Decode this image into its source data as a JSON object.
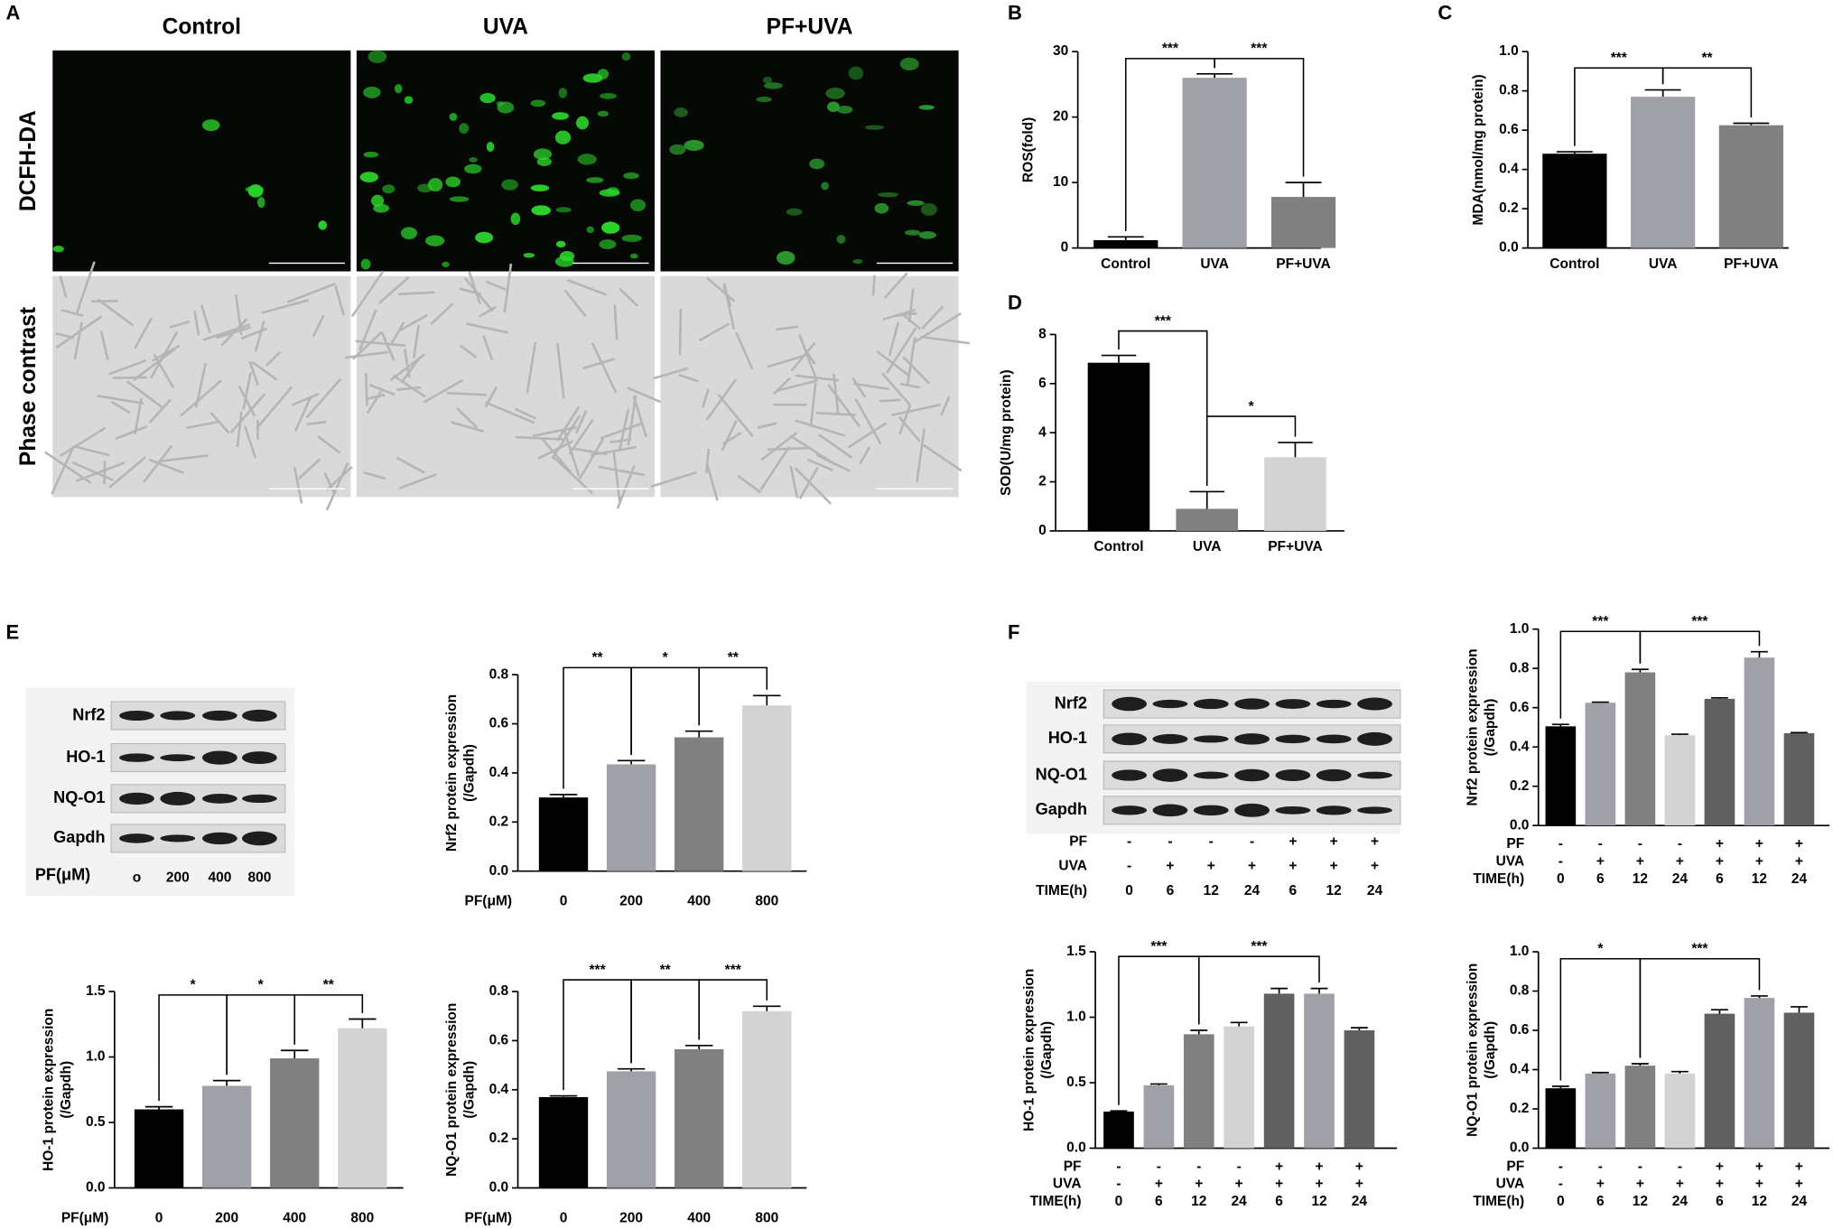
{
  "panel_labels": [
    "A",
    "B",
    "C",
    "D",
    "E",
    "F"
  ],
  "micrograph": {
    "columns": [
      "Control",
      "UVA",
      "PF+UVA"
    ],
    "rows": [
      "DCFH-DA",
      "Phase contrast"
    ]
  },
  "blot_e": {
    "rows": [
      "Nrf2",
      "HO-1",
      "NQ-O1",
      "Gapdh"
    ],
    "lane_label": "PF(μM)",
    "lanes": [
      "o",
      "200",
      "400",
      "800"
    ]
  },
  "blot_f": {
    "rows": [
      "Nrf2",
      "HO-1",
      "NQ-O1",
      "Gapdh"
    ],
    "conditions": [
      {
        "label": "PF",
        "values": [
          "-",
          "-",
          "-",
          "-",
          "+",
          "+",
          "+"
        ]
      },
      {
        "label": "UVA",
        "values": [
          "-",
          "+",
          "+",
          "+",
          "+",
          "+",
          "+"
        ]
      },
      {
        "label": "TIME(h)",
        "values": [
          "0",
          "6",
          "12",
          "24",
          "6",
          "12",
          "24"
        ]
      }
    ]
  },
  "chart_data": [
    {
      "type": "bar",
      "ylabel": [
        "ROS(fold)"
      ],
      "categories": [
        "Control",
        "UVA",
        "PF+UVA"
      ],
      "values": [
        1.2,
        26,
        7.8
      ],
      "errors": [
        0.5,
        0.6,
        2.2
      ],
      "colors": [
        "#000000",
        "#a0a0a8",
        "#808080"
      ],
      "ylim": [
        0,
        30
      ],
      "yticks": [
        0,
        10,
        20,
        30
      ],
      "annotations": [
        "***",
        "***"
      ]
    },
    {
      "type": "bar",
      "ylabel": [
        "MDA(nmol/mg protein)"
      ],
      "categories": [
        "Control",
        "UVA",
        "PF+UVA"
      ],
      "values": [
        0.48,
        0.77,
        0.625
      ],
      "errors": [
        0.01,
        0.035,
        0.01
      ],
      "colors": [
        "#000000",
        "#a0a0a8",
        "#808080"
      ],
      "ylim": [
        0,
        1
      ],
      "yticks": [
        {
          "value": 0,
          "label": "0.0"
        },
        0.2,
        0.4,
        0.6,
        0.8,
        {
          "value": 1,
          "label": "1.0"
        }
      ],
      "annotations": [
        "***",
        "**"
      ]
    },
    {
      "type": "bar",
      "ylabel": [
        "SOD(U/mg protein)"
      ],
      "categories": [
        "Control",
        "UVA",
        "PF+UVA"
      ],
      "values": [
        6.85,
        0.9,
        3.0
      ],
      "errors": [
        0.3,
        0.7,
        0.6
      ],
      "colors": [
        "#000000",
        "#808080",
        "#d3d3d3"
      ],
      "ylim": [
        0,
        8
      ],
      "yticks": [
        0,
        2,
        4,
        6,
        8
      ],
      "annotations": [
        "***",
        "*"
      ]
    },
    {
      "type": "bar",
      "ylabel": [
        "Nrf2 protein expression",
        "(/Gapdh)"
      ],
      "xlabel": "PF(μM)",
      "categories": [
        "0",
        "200",
        "400",
        "800"
      ],
      "values": [
        0.3,
        0.435,
        0.545,
        0.675
      ],
      "errors": [
        0.012,
        0.015,
        0.025,
        0.04
      ],
      "colors": [
        "#000000",
        "#a0a0a8",
        "#808080",
        "#d3d3d3"
      ],
      "ylim": [
        0,
        0.8
      ],
      "yticks": [
        {
          "value": 0,
          "label": "0.0"
        },
        0.2,
        0.4,
        0.6,
        0.8
      ],
      "annotations": [
        "**",
        "*",
        "**"
      ]
    },
    {
      "type": "bar",
      "ylabel": [
        "HO-1 protein expression",
        "(/Gapdh)"
      ],
      "xlabel": "PF(μM)",
      "categories": [
        "0",
        "200",
        "400",
        "800"
      ],
      "values": [
        0.6,
        0.78,
        0.99,
        1.22
      ],
      "errors": [
        0.02,
        0.04,
        0.06,
        0.07
      ],
      "colors": [
        "#000000",
        "#a0a0a8",
        "#808080",
        "#d3d3d3"
      ],
      "ylim": [
        0,
        1.5
      ],
      "yticks": [
        {
          "value": 0,
          "label": "0.0"
        },
        0.5,
        {
          "value": 1,
          "label": "1.0"
        },
        1.5
      ],
      "annotations": [
        "*",
        "*",
        "**"
      ]
    },
    {
      "type": "bar",
      "ylabel": [
        "NQ-O1 protein expression",
        "(/Gapdh)"
      ],
      "xlabel": "PF(μM)",
      "categories": [
        "0",
        "200",
        "400",
        "800"
      ],
      "values": [
        0.37,
        0.475,
        0.565,
        0.72
      ],
      "errors": [
        0.005,
        0.01,
        0.015,
        0.02
      ],
      "colors": [
        "#000000",
        "#a0a0a8",
        "#808080",
        "#d3d3d3"
      ],
      "ylim": [
        0,
        0.8
      ],
      "yticks": [
        {
          "value": 0,
          "label": "0.0"
        },
        0.2,
        0.4,
        0.6,
        0.8
      ],
      "annotations": [
        "***",
        "**",
        "***"
      ]
    },
    {
      "type": "bar",
      "ylabel": [
        "Nrf2 protein expression",
        "(/Gapdh)"
      ],
      "conditions": [
        {
          "label": "PF",
          "values": [
            "-",
            "-",
            "-",
            "-",
            "+",
            "+",
            "+"
          ]
        },
        {
          "label": "UVA",
          "values": [
            "-",
            "+",
            "+",
            "+",
            "+",
            "+",
            "+"
          ]
        },
        {
          "label": "TIME(h)",
          "values": [
            "0",
            "6",
            "12",
            "24",
            "6",
            "12",
            "24"
          ]
        }
      ],
      "values": [
        0.505,
        0.625,
        0.78,
        0.46,
        0.645,
        0.855,
        0.47
      ],
      "errors": [
        0.01,
        0.003,
        0.015,
        0.005,
        0.005,
        0.03,
        0.003
      ],
      "colors": [
        "#000000",
        "#a0a0a8",
        "#808080",
        "#d3d3d3",
        "#606060",
        "#a0a0a8",
        "#606060"
      ],
      "ylim": [
        0,
        1
      ],
      "yticks": [
        {
          "value": 0,
          "label": "0.0"
        },
        0.2,
        0.4,
        0.6,
        0.8,
        {
          "value": 1,
          "label": "1.0"
        }
      ],
      "annotations": [
        "***",
        "***"
      ]
    },
    {
      "type": "bar",
      "ylabel": [
        "HO-1 protein expression",
        "(/Gapdh)"
      ],
      "conditions": [
        {
          "label": "PF",
          "values": [
            "-",
            "-",
            "-",
            "-",
            "+",
            "+",
            "+"
          ]
        },
        {
          "label": "UVA",
          "values": [
            "-",
            "+",
            "+",
            "+",
            "+",
            "+",
            "+"
          ]
        },
        {
          "label": "TIME(h)",
          "values": [
            "0",
            "6",
            "12",
            "24",
            "6",
            "12",
            "24"
          ]
        }
      ],
      "values": [
        0.28,
        0.48,
        0.87,
        0.93,
        1.18,
        1.18,
        0.9
      ],
      "errors": [
        0.005,
        0.01,
        0.03,
        0.03,
        0.04,
        0.04,
        0.02
      ],
      "colors": [
        "#000000",
        "#a0a0a8",
        "#808080",
        "#d3d3d3",
        "#606060",
        "#a0a0a8",
        "#606060"
      ],
      "ylim": [
        0,
        1.5
      ],
      "yticks": [
        {
          "value": 0,
          "label": "0.0"
        },
        0.5,
        {
          "value": 1,
          "label": "1.0"
        },
        1.5
      ],
      "annotations": [
        "***",
        "***"
      ]
    },
    {
      "type": "bar",
      "ylabel": [
        "NQ-O1 protein expression",
        "(/Gapdh)"
      ],
      "conditions": [
        {
          "label": "PF",
          "values": [
            "-",
            "-",
            "-",
            "-",
            "+",
            "+",
            "+"
          ]
        },
        {
          "label": "UVA",
          "values": [
            "-",
            "+",
            "+",
            "+",
            "+",
            "+",
            "+"
          ]
        },
        {
          "label": "TIME(h)",
          "values": [
            "0",
            "6",
            "12",
            "24",
            "6",
            "12",
            "24"
          ]
        }
      ],
      "values": [
        0.305,
        0.38,
        0.42,
        0.38,
        0.685,
        0.765,
        0.69
      ],
      "errors": [
        0.01,
        0.005,
        0.01,
        0.01,
        0.02,
        0.01,
        0.03
      ],
      "colors": [
        "#000000",
        "#a0a0a8",
        "#808080",
        "#d3d3d3",
        "#606060",
        "#a0a0a8",
        "#606060"
      ],
      "ylim": [
        0,
        1
      ],
      "yticks": [
        {
          "value": 0,
          "label": "0.0"
        },
        0.2,
        0.4,
        0.6,
        0.8,
        {
          "value": 1,
          "label": "1.0"
        }
      ],
      "annotations": [
        "*",
        "***"
      ]
    }
  ]
}
